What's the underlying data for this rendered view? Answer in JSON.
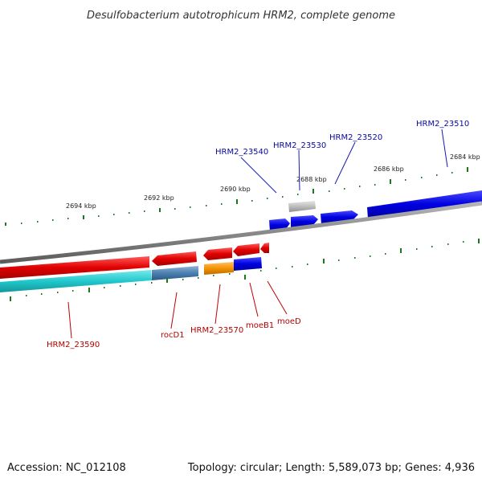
{
  "title": "Desulfobacterium autotrophicum HRM2, complete genome",
  "footer": {
    "accession": "Accession: NC_012108",
    "topology": "Topology: circular; Length: 5,589,073 bp; Genes: 4,936"
  },
  "tick_labels": [
    "2694 kbp",
    "2692 kbp",
    "2690 kbp",
    "2688 kbp",
    "2686 kbp",
    "2684 kbp"
  ],
  "genes_forward": [
    {
      "name": "HRM2_23540",
      "color": "#0000e0"
    },
    {
      "name": "HRM2_23530",
      "color": "#bdbdbd"
    },
    {
      "name": "HRM2_23520",
      "color": "#0000e0"
    },
    {
      "name": "HRM2_23510",
      "color": "#0000e0"
    }
  ],
  "genes_reverse": [
    {
      "name": "HRM2_23590",
      "color": "#e00000"
    },
    {
      "name": "rocD1",
      "color": "#e00000"
    },
    {
      "name": "HRM2_23570",
      "color": "#e00000"
    },
    {
      "name": "moeB1",
      "color": "#e00000"
    },
    {
      "name": "moeD",
      "color": "#e00000"
    }
  ],
  "cog_track": [
    {
      "category": "cyan",
      "color": "#20c8cc"
    },
    {
      "category": "steelblue",
      "color": "#4a7fb0"
    },
    {
      "category": "orange",
      "color": "#f59300"
    },
    {
      "category": "blue",
      "color": "#0000e8"
    }
  ],
  "colors": {
    "backbone": "#8a8a8a",
    "tick": "#1a7a1a",
    "forward": "#0000e0",
    "reverse": "#e00000"
  }
}
